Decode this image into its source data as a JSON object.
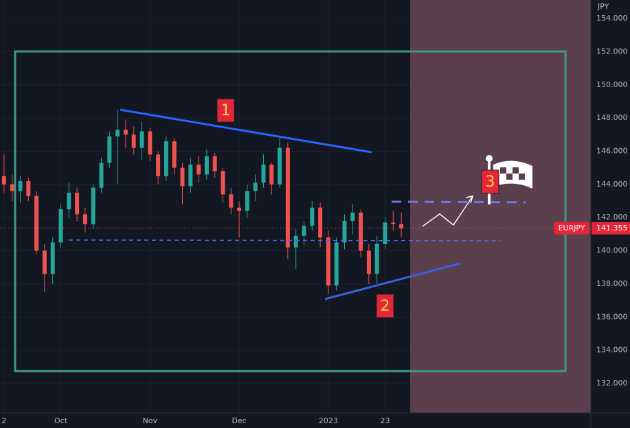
{
  "chart_data": {
    "type": "candlestick",
    "symbol": "EURJPY",
    "currency": "JPY",
    "last_price": 141.355,
    "last_price_label": "141.355",
    "up_color": "#26a69a",
    "down_color": "#ef5350",
    "categories": [
      "2",
      null,
      null,
      null,
      null,
      null,
      null,
      "Oct",
      null,
      null,
      null,
      null,
      null,
      null,
      null,
      null,
      null,
      null,
      "Nov",
      null,
      null,
      null,
      null,
      null,
      null,
      null,
      null,
      null,
      null,
      "Dec",
      null,
      null,
      null,
      null,
      null,
      null,
      null,
      null,
      null,
      null,
      "2023",
      null,
      null,
      null,
      null,
      null,
      null,
      "23",
      null,
      null
    ],
    "open": [
      144.5,
      144.0,
      143.6,
      144.2,
      143.3,
      140.0,
      138.6,
      140.5,
      142.5,
      143.5,
      142.2,
      141.6,
      143.8,
      145.3,
      146.9,
      147.3,
      147.0,
      146.2,
      147.2,
      145.8,
      144.5,
      146.6,
      145.0,
      143.9,
      145.2,
      144.6,
      145.7,
      144.8,
      143.4,
      142.6,
      142.4,
      143.6,
      144.1,
      145.2,
      144.0,
      146.2,
      140.2,
      140.9,
      141.5,
      142.6,
      140.8,
      137.9,
      140.5,
      141.8,
      142.3,
      140.0,
      138.6,
      140.4,
      141.7,
      141.6
    ],
    "high": [
      145.8,
      144.6,
      144.5,
      144.4,
      143.6,
      140.4,
      140.8,
      142.8,
      144.1,
      143.8,
      142.6,
      144.0,
      145.6,
      147.2,
      148.5,
      147.9,
      147.5,
      147.8,
      147.4,
      146.0,
      146.9,
      146.8,
      145.3,
      145.6,
      145.7,
      146.1,
      145.9,
      145.0,
      143.8,
      143.0,
      144.0,
      144.6,
      145.8,
      145.3,
      146.8,
      146.5,
      141.3,
      141.8,
      143.0,
      142.9,
      141.2,
      140.8,
      142.2,
      142.8,
      142.5,
      140.4,
      140.9,
      142.0,
      142.4,
      142.3
    ],
    "low": [
      143.5,
      143.0,
      142.9,
      143.0,
      139.8,
      137.5,
      138.0,
      140.2,
      142.0,
      141.8,
      141.1,
      141.3,
      143.5,
      145.0,
      144.0,
      146.2,
      145.8,
      145.5,
      145.4,
      144.0,
      144.2,
      144.6,
      142.8,
      143.5,
      144.1,
      144.3,
      144.4,
      142.9,
      142.2,
      140.8,
      142.0,
      143.0,
      143.8,
      143.4,
      143.8,
      139.5,
      138.9,
      140.3,
      141.2,
      140.2,
      137.4,
      137.6,
      140.1,
      141.0,
      139.6,
      138.0,
      138.0,
      140.1,
      141.2,
      140.8
    ],
    "close": [
      144.0,
      143.6,
      144.2,
      143.3,
      140.0,
      138.6,
      140.5,
      142.5,
      143.5,
      142.2,
      141.6,
      143.8,
      145.3,
      146.9,
      147.3,
      147.0,
      146.2,
      147.2,
      145.8,
      144.5,
      146.6,
      145.0,
      143.9,
      145.2,
      144.6,
      145.7,
      144.8,
      143.4,
      142.6,
      142.4,
      143.6,
      144.1,
      145.2,
      144.0,
      146.2,
      140.2,
      140.9,
      141.5,
      142.6,
      140.8,
      137.9,
      140.5,
      141.8,
      142.3,
      140.0,
      138.6,
      140.4,
      141.7,
      141.6,
      141.355
    ],
    "ylim": [
      130.22,
      155.12
    ],
    "yticks": [
      {
        "value": 132,
        "label": "132.000"
      },
      {
        "value": 134,
        "label": "134.000"
      },
      {
        "value": 136,
        "label": "136.000"
      },
      {
        "value": 138,
        "label": "138.000"
      },
      {
        "value": 140,
        "label": "140.000"
      },
      {
        "value": 142,
        "label": "142.000"
      },
      {
        "value": 144,
        "label": "144.000"
      },
      {
        "value": 146,
        "label": "146.000"
      },
      {
        "value": 148,
        "label": "148.000"
      },
      {
        "value": 150,
        "label": "150.000"
      },
      {
        "value": 152,
        "label": "152.000"
      },
      {
        "value": 154,
        "label": "154.000"
      }
    ],
    "annotations": [
      "1",
      "2",
      "3"
    ]
  }
}
